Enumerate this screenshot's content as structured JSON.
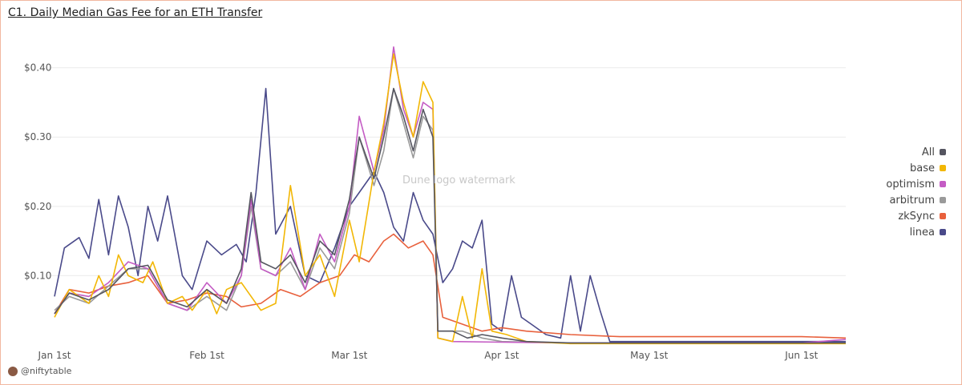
{
  "title": "C1. Daily Median Gas Fee for an ETH Transfer",
  "watermark": "Dune logo watermark",
  "credit": "@niftytable",
  "chart_data": {
    "type": "line",
    "title": "C1. Daily Median Gas Fee for an ETH Transfer",
    "xlabel": "",
    "ylabel": "",
    "y_ticks": [
      {
        "value": 0.1,
        "label": "$0.10"
      },
      {
        "value": 0.2,
        "label": "$0.20"
      },
      {
        "value": 0.3,
        "label": "$0.30"
      },
      {
        "value": 0.4,
        "label": "$0.40"
      }
    ],
    "x_ticks": [
      {
        "date": "2024-01-01",
        "label": "Jan 1st"
      },
      {
        "date": "2024-02-01",
        "label": "Feb 1st"
      },
      {
        "date": "2024-03-01",
        "label": "Mar 1st"
      },
      {
        "date": "2024-04-01",
        "label": "Apr 1st"
      },
      {
        "date": "2024-05-01",
        "label": "May 1st"
      },
      {
        "date": "2024-06-01",
        "label": "Jun 1st"
      }
    ],
    "xlim": [
      "2024-01-01",
      "2024-06-10"
    ],
    "ylim": [
      0,
      0.44
    ],
    "grid": true,
    "legend_position": "right",
    "series": [
      {
        "name": "All",
        "color": "#555560",
        "points": [
          [
            "2024-01-01",
            0.045
          ],
          [
            "2024-01-04",
            0.075
          ],
          [
            "2024-01-08",
            0.065
          ],
          [
            "2024-01-12",
            0.08
          ],
          [
            "2024-01-16",
            0.11
          ],
          [
            "2024-01-20",
            0.115
          ],
          [
            "2024-01-24",
            0.065
          ],
          [
            "2024-01-28",
            0.055
          ],
          [
            "2024-02-01",
            0.08
          ],
          [
            "2024-02-05",
            0.06
          ],
          [
            "2024-02-08",
            0.11
          ],
          [
            "2024-02-10",
            0.22
          ],
          [
            "2024-02-12",
            0.12
          ],
          [
            "2024-02-15",
            0.11
          ],
          [
            "2024-02-18",
            0.13
          ],
          [
            "2024-02-21",
            0.09
          ],
          [
            "2024-02-24",
            0.15
          ],
          [
            "2024-02-27",
            0.13
          ],
          [
            "2024-03-01",
            0.21
          ],
          [
            "2024-03-03",
            0.3
          ],
          [
            "2024-03-06",
            0.24
          ],
          [
            "2024-03-08",
            0.3
          ],
          [
            "2024-03-10",
            0.37
          ],
          [
            "2024-03-12",
            0.33
          ],
          [
            "2024-03-14",
            0.28
          ],
          [
            "2024-03-16",
            0.34
          ],
          [
            "2024-03-18",
            0.3
          ],
          [
            "2024-03-19",
            0.02
          ],
          [
            "2024-03-22",
            0.02
          ],
          [
            "2024-03-25",
            0.01
          ],
          [
            "2024-03-28",
            0.015
          ],
          [
            "2024-04-01",
            0.01
          ],
          [
            "2024-04-06",
            0.005
          ],
          [
            "2024-04-15",
            0.003
          ],
          [
            "2024-05-01",
            0.003
          ],
          [
            "2024-05-15",
            0.003
          ],
          [
            "2024-06-01",
            0.003
          ],
          [
            "2024-06-10",
            0.003
          ]
        ]
      },
      {
        "name": "base",
        "color": "#f2b705",
        "points": [
          [
            "2024-01-01",
            0.04
          ],
          [
            "2024-01-04",
            0.08
          ],
          [
            "2024-01-08",
            0.06
          ],
          [
            "2024-01-10",
            0.1
          ],
          [
            "2024-01-12",
            0.07
          ],
          [
            "2024-01-14",
            0.13
          ],
          [
            "2024-01-16",
            0.1
          ],
          [
            "2024-01-19",
            0.09
          ],
          [
            "2024-01-21",
            0.12
          ],
          [
            "2024-01-24",
            0.06
          ],
          [
            "2024-01-27",
            0.07
          ],
          [
            "2024-01-29",
            0.05
          ],
          [
            "2024-02-01",
            0.08
          ],
          [
            "2024-02-03",
            0.045
          ],
          [
            "2024-02-05",
            0.08
          ],
          [
            "2024-02-08",
            0.09
          ],
          [
            "2024-02-12",
            0.05
          ],
          [
            "2024-02-15",
            0.06
          ],
          [
            "2024-02-18",
            0.23
          ],
          [
            "2024-02-21",
            0.1
          ],
          [
            "2024-02-24",
            0.13
          ],
          [
            "2024-02-27",
            0.07
          ],
          [
            "2024-03-01",
            0.18
          ],
          [
            "2024-03-03",
            0.12
          ],
          [
            "2024-03-06",
            0.25
          ],
          [
            "2024-03-08",
            0.32
          ],
          [
            "2024-03-10",
            0.42
          ],
          [
            "2024-03-12",
            0.35
          ],
          [
            "2024-03-14",
            0.3
          ],
          [
            "2024-03-16",
            0.38
          ],
          [
            "2024-03-18",
            0.35
          ],
          [
            "2024-03-19",
            0.01
          ],
          [
            "2024-03-22",
            0.005
          ],
          [
            "2024-03-24",
            0.07
          ],
          [
            "2024-03-26",
            0.01
          ],
          [
            "2024-03-28",
            0.11
          ],
          [
            "2024-03-30",
            0.02
          ],
          [
            "2024-04-02",
            0.015
          ],
          [
            "2024-04-06",
            0.005
          ],
          [
            "2024-04-15",
            0.002
          ],
          [
            "2024-05-01",
            0.002
          ],
          [
            "2024-05-15",
            0.002
          ],
          [
            "2024-06-01",
            0.002
          ],
          [
            "2024-06-10",
            0.002
          ]
        ]
      },
      {
        "name": "optimism",
        "color": "#c45cc4",
        "points": [
          [
            "2024-01-01",
            0.045
          ],
          [
            "2024-01-04",
            0.075
          ],
          [
            "2024-01-08",
            0.07
          ],
          [
            "2024-01-12",
            0.09
          ],
          [
            "2024-01-16",
            0.12
          ],
          [
            "2024-01-20",
            0.11
          ],
          [
            "2024-01-24",
            0.06
          ],
          [
            "2024-01-28",
            0.05
          ],
          [
            "2024-02-01",
            0.09
          ],
          [
            "2024-02-05",
            0.06
          ],
          [
            "2024-02-08",
            0.1
          ],
          [
            "2024-02-10",
            0.21
          ],
          [
            "2024-02-12",
            0.11
          ],
          [
            "2024-02-15",
            0.1
          ],
          [
            "2024-02-18",
            0.14
          ],
          [
            "2024-02-21",
            0.08
          ],
          [
            "2024-02-24",
            0.16
          ],
          [
            "2024-02-27",
            0.12
          ],
          [
            "2024-03-01",
            0.2
          ],
          [
            "2024-03-03",
            0.33
          ],
          [
            "2024-03-06",
            0.25
          ],
          [
            "2024-03-08",
            0.31
          ],
          [
            "2024-03-10",
            0.43
          ],
          [
            "2024-03-12",
            0.34
          ],
          [
            "2024-03-14",
            0.3
          ],
          [
            "2024-03-16",
            0.35
          ],
          [
            "2024-03-18",
            0.34
          ],
          [
            "2024-03-19",
            0.01
          ],
          [
            "2024-03-22",
            0.005
          ],
          [
            "2024-04-01",
            0.004
          ],
          [
            "2024-04-15",
            0.003
          ],
          [
            "2024-05-01",
            0.003
          ],
          [
            "2024-05-15",
            0.003
          ],
          [
            "2024-06-01",
            0.003
          ],
          [
            "2024-06-10",
            0.008
          ]
        ]
      },
      {
        "name": "arbitrum",
        "color": "#9a9a9a",
        "points": [
          [
            "2024-01-01",
            0.05
          ],
          [
            "2024-01-04",
            0.07
          ],
          [
            "2024-01-08",
            0.06
          ],
          [
            "2024-01-12",
            0.085
          ],
          [
            "2024-01-16",
            0.11
          ],
          [
            "2024-01-20",
            0.11
          ],
          [
            "2024-01-24",
            0.06
          ],
          [
            "2024-01-28",
            0.05
          ],
          [
            "2024-02-01",
            0.07
          ],
          [
            "2024-02-05",
            0.05
          ],
          [
            "2024-02-08",
            0.1
          ],
          [
            "2024-02-10",
            0.2
          ],
          [
            "2024-02-12",
            0.11
          ],
          [
            "2024-02-15",
            0.1
          ],
          [
            "2024-02-18",
            0.12
          ],
          [
            "2024-02-21",
            0.08
          ],
          [
            "2024-02-24",
            0.14
          ],
          [
            "2024-02-27",
            0.11
          ],
          [
            "2024-03-01",
            0.19
          ],
          [
            "2024-03-03",
            0.3
          ],
          [
            "2024-03-06",
            0.23
          ],
          [
            "2024-03-08",
            0.28
          ],
          [
            "2024-03-10",
            0.37
          ],
          [
            "2024-03-12",
            0.32
          ],
          [
            "2024-03-14",
            0.27
          ],
          [
            "2024-03-16",
            0.33
          ],
          [
            "2024-03-18",
            0.31
          ],
          [
            "2024-03-19",
            0.02
          ],
          [
            "2024-03-24",
            0.02
          ],
          [
            "2024-03-28",
            0.01
          ],
          [
            "2024-04-01",
            0.005
          ],
          [
            "2024-04-15",
            0.003
          ],
          [
            "2024-05-01",
            0.003
          ],
          [
            "2024-06-01",
            0.003
          ],
          [
            "2024-06-10",
            0.003
          ]
        ]
      },
      {
        "name": "zkSync",
        "color": "#e8603c",
        "points": [
          [
            "2024-01-01",
            0.045
          ],
          [
            "2024-01-04",
            0.08
          ],
          [
            "2024-01-08",
            0.075
          ],
          [
            "2024-01-12",
            0.085
          ],
          [
            "2024-01-16",
            0.09
          ],
          [
            "2024-01-20",
            0.1
          ],
          [
            "2024-01-24",
            0.06
          ],
          [
            "2024-01-28",
            0.065
          ],
          [
            "2024-02-01",
            0.075
          ],
          [
            "2024-02-05",
            0.07
          ],
          [
            "2024-02-08",
            0.055
          ],
          [
            "2024-02-12",
            0.06
          ],
          [
            "2024-02-16",
            0.08
          ],
          [
            "2024-02-20",
            0.07
          ],
          [
            "2024-02-24",
            0.09
          ],
          [
            "2024-02-28",
            0.1
          ],
          [
            "2024-03-02",
            0.13
          ],
          [
            "2024-03-05",
            0.12
          ],
          [
            "2024-03-08",
            0.15
          ],
          [
            "2024-03-10",
            0.16
          ],
          [
            "2024-03-13",
            0.14
          ],
          [
            "2024-03-16",
            0.15
          ],
          [
            "2024-03-18",
            0.13
          ],
          [
            "2024-03-20",
            0.04
          ],
          [
            "2024-03-24",
            0.03
          ],
          [
            "2024-03-28",
            0.02
          ],
          [
            "2024-04-01",
            0.025
          ],
          [
            "2024-04-06",
            0.02
          ],
          [
            "2024-04-15",
            0.015
          ],
          [
            "2024-04-25",
            0.012
          ],
          [
            "2024-05-05",
            0.012
          ],
          [
            "2024-05-20",
            0.012
          ],
          [
            "2024-06-01",
            0.012
          ],
          [
            "2024-06-10",
            0.01
          ]
        ]
      },
      {
        "name": "linea",
        "color": "#4a4a8a",
        "points": [
          [
            "2024-01-01",
            0.07
          ],
          [
            "2024-01-03",
            0.14
          ],
          [
            "2024-01-06",
            0.155
          ],
          [
            "2024-01-08",
            0.125
          ],
          [
            "2024-01-10",
            0.21
          ],
          [
            "2024-01-12",
            0.13
          ],
          [
            "2024-01-14",
            0.215
          ],
          [
            "2024-01-16",
            0.17
          ],
          [
            "2024-01-18",
            0.1
          ],
          [
            "2024-01-20",
            0.2
          ],
          [
            "2024-01-22",
            0.15
          ],
          [
            "2024-01-24",
            0.215
          ],
          [
            "2024-01-27",
            0.1
          ],
          [
            "2024-01-29",
            0.08
          ],
          [
            "2024-02-01",
            0.15
          ],
          [
            "2024-02-04",
            0.13
          ],
          [
            "2024-02-07",
            0.145
          ],
          [
            "2024-02-09",
            0.12
          ],
          [
            "2024-02-11",
            0.22
          ],
          [
            "2024-02-13",
            0.37
          ],
          [
            "2024-02-15",
            0.16
          ],
          [
            "2024-02-18",
            0.2
          ],
          [
            "2024-02-21",
            0.1
          ],
          [
            "2024-02-24",
            0.09
          ],
          [
            "2024-02-27",
            0.14
          ],
          [
            "2024-03-01",
            0.2
          ],
          [
            "2024-03-03",
            0.22
          ],
          [
            "2024-03-06",
            0.25
          ],
          [
            "2024-03-08",
            0.22
          ],
          [
            "2024-03-10",
            0.17
          ],
          [
            "2024-03-12",
            0.15
          ],
          [
            "2024-03-14",
            0.22
          ],
          [
            "2024-03-16",
            0.18
          ],
          [
            "2024-03-18",
            0.16
          ],
          [
            "2024-03-20",
            0.09
          ],
          [
            "2024-03-22",
            0.11
          ],
          [
            "2024-03-24",
            0.15
          ],
          [
            "2024-03-26",
            0.14
          ],
          [
            "2024-03-28",
            0.18
          ],
          [
            "2024-03-30",
            0.03
          ],
          [
            "2024-04-01",
            0.02
          ],
          [
            "2024-04-03",
            0.1
          ],
          [
            "2024-04-05",
            0.04
          ],
          [
            "2024-04-07",
            0.03
          ],
          [
            "2024-04-10",
            0.015
          ],
          [
            "2024-04-13",
            0.01
          ],
          [
            "2024-04-15",
            0.1
          ],
          [
            "2024-04-17",
            0.02
          ],
          [
            "2024-04-19",
            0.1
          ],
          [
            "2024-04-21",
            0.05
          ],
          [
            "2024-04-23",
            0.005
          ],
          [
            "2024-05-01",
            0.005
          ],
          [
            "2024-05-15",
            0.005
          ],
          [
            "2024-06-01",
            0.005
          ],
          [
            "2024-06-10",
            0.005
          ]
        ]
      }
    ]
  }
}
